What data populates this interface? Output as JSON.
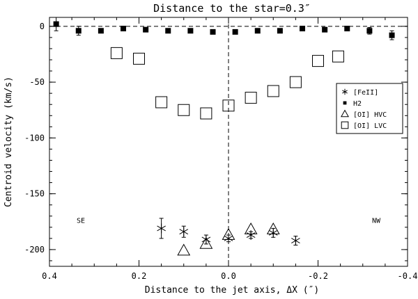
{
  "chart_data": {
    "type": "scatter",
    "title": "Distance to the star=0.3″",
    "xlabel": "Distance to the jet axis, ΔX (″)",
    "ylabel": "Centroid velocity (km/s)",
    "xlim": [
      0.4,
      -0.4
    ],
    "ylim": [
      -215,
      8
    ],
    "x_ticks": [
      0.4,
      0.2,
      0.0,
      -0.2,
      -0.4
    ],
    "x_tick_labels": [
      "0.4",
      "0.2",
      "0.0",
      "-0.2",
      "-0.4"
    ],
    "y_ticks": [
      0,
      -50,
      -100,
      -150,
      -200
    ],
    "y_tick_labels": [
      "0",
      "-50",
      "-100",
      "-150",
      "-200"
    ],
    "reference_lines": {
      "y": 0,
      "x": 0
    },
    "annotations": [
      {
        "text": "SE",
        "x": 0.33,
        "y": -176
      },
      {
        "text": "NW",
        "x": -0.33,
        "y": -176
      }
    ],
    "legend_position": "right",
    "series": [
      {
        "name": "[FeII]",
        "marker": "asterisk",
        "points": [
          {
            "x": 0.15,
            "y": -181,
            "err": 9
          },
          {
            "x": 0.1,
            "y": -184,
            "err": 5
          },
          {
            "x": 0.05,
            "y": -191,
            "err": 4
          },
          {
            "x": 0.0,
            "y": -190,
            "err": 3
          },
          {
            "x": -0.05,
            "y": -187,
            "err": 3
          },
          {
            "x": -0.1,
            "y": -185,
            "err": 4
          },
          {
            "x": -0.15,
            "y": -192,
            "err": 4
          }
        ]
      },
      {
        "name": "H2",
        "marker": "filled-square",
        "points": [
          {
            "x": 0.385,
            "y": 2,
            "err": 6
          },
          {
            "x": 0.335,
            "y": -4,
            "err": 4
          },
          {
            "x": 0.285,
            "y": -4,
            "err": 0
          },
          {
            "x": 0.235,
            "y": -2,
            "err": 0
          },
          {
            "x": 0.185,
            "y": -3,
            "err": 0
          },
          {
            "x": 0.135,
            "y": -4,
            "err": 0
          },
          {
            "x": 0.085,
            "y": -4,
            "err": 0
          },
          {
            "x": 0.035,
            "y": -5,
            "err": 0
          },
          {
            "x": -0.015,
            "y": -5,
            "err": 0
          },
          {
            "x": -0.065,
            "y": -4,
            "err": 0
          },
          {
            "x": -0.115,
            "y": -4,
            "err": 0
          },
          {
            "x": -0.165,
            "y": -2,
            "err": 0
          },
          {
            "x": -0.215,
            "y": -3,
            "err": 0
          },
          {
            "x": -0.265,
            "y": -2,
            "err": 0
          },
          {
            "x": -0.315,
            "y": -4,
            "err": 3
          },
          {
            "x": -0.365,
            "y": -8,
            "err": 4
          }
        ]
      },
      {
        "name": "[OI] HVC",
        "marker": "open-triangle",
        "points": [
          {
            "x": 0.1,
            "y": -201
          },
          {
            "x": 0.05,
            "y": -195
          },
          {
            "x": 0.0,
            "y": -187
          },
          {
            "x": -0.05,
            "y": -182
          },
          {
            "x": -0.1,
            "y": -182
          }
        ]
      },
      {
        "name": "[OI] LVC",
        "marker": "open-square",
        "points": [
          {
            "x": 0.25,
            "y": -24
          },
          {
            "x": 0.2,
            "y": -29
          },
          {
            "x": 0.15,
            "y": -68
          },
          {
            "x": 0.1,
            "y": -75
          },
          {
            "x": 0.05,
            "y": -78
          },
          {
            "x": 0.0,
            "y": -71
          },
          {
            "x": -0.05,
            "y": -64
          },
          {
            "x": -0.1,
            "y": -58
          },
          {
            "x": -0.15,
            "y": -50
          },
          {
            "x": -0.2,
            "y": -31
          },
          {
            "x": -0.245,
            "y": -27
          }
        ]
      }
    ]
  }
}
